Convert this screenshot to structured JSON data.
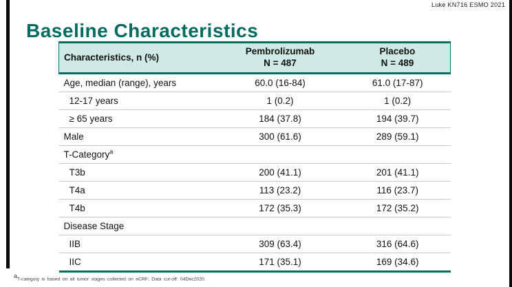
{
  "credit": "Luke KN716 ESMO 2021",
  "title": "Baseline Characteristics",
  "colors": {
    "accent_teal": "#00705F",
    "title_teal": "#006B5E",
    "header_bg": "#CFE9E4",
    "row_divider": "#C9C9C9"
  },
  "table": {
    "col1_header": "Characteristics, n (%)",
    "col2_header_line1": "Pembrolizumab",
    "col2_header_line2": "N = 487",
    "col3_header_line1": "Placebo",
    "col3_header_line2": "N = 489",
    "rows": [
      {
        "label": "Age, median (range), years",
        "indent": false,
        "pembrolizumab": "60.0 (16-84)",
        "placebo": "61.0 (17-87)"
      },
      {
        "label": "12-17 years",
        "indent": true,
        "pembrolizumab": "1 (0.2)",
        "placebo": "1 (0.2)"
      },
      {
        "label": "≥ 65 years",
        "indent": true,
        "pembrolizumab": "184 (37.8)",
        "placebo": "194 (39.7)"
      },
      {
        "label": "Male",
        "indent": false,
        "pembrolizumab": "300 (61.6)",
        "placebo": "289 (59.1)"
      },
      {
        "label": "T-Category",
        "sup": "a",
        "indent": false,
        "pembrolizumab": "",
        "placebo": ""
      },
      {
        "label": "T3b",
        "indent": true,
        "pembrolizumab": "200 (41.1)",
        "placebo": "201 (41.1)"
      },
      {
        "label": "T4a",
        "indent": true,
        "pembrolizumab": "113 (23.2)",
        "placebo": "116 (23.7)"
      },
      {
        "label": "T4b",
        "indent": true,
        "pembrolizumab": "172 (35.3)",
        "placebo": "172 (35.2)"
      },
      {
        "label": "Disease Stage",
        "indent": false,
        "pembrolizumab": "",
        "placebo": ""
      },
      {
        "label": "IIB",
        "indent": true,
        "pembrolizumab": "309 (63.4)",
        "placebo": "316 (64.6)"
      },
      {
        "label": "IIC",
        "indent": true,
        "pembrolizumab": "171 (35.1)",
        "placebo": "169 (34.6)"
      }
    ]
  },
  "footnote": {
    "sup": "a",
    "text": "T-category is based on all tumor stages collected on eCRF;  Data cut-off: 04Dec2020."
  }
}
